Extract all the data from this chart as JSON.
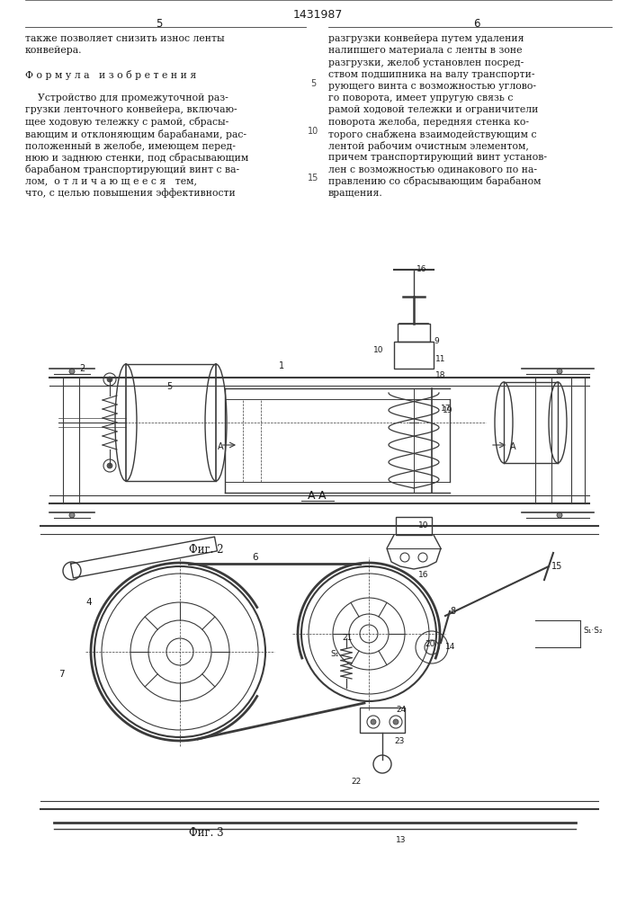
{
  "patent_number": "1431987",
  "page_left": "5",
  "page_right": "6",
  "bg_color": "#ffffff",
  "text_color": "#1a1a1a",
  "line_color": "#3a3a3a",
  "left_column_text": [
    "также позволяет снизить износ ленты",
    "конвейера.",
    "",
    "Ф о р м у л а   и з о б р е т е н и я",
    "",
    "    Устройство для промежуточной раз-",
    "грузки ленточного конвейера, включаю-",
    "щее ходовую тележку с рамой, сбрасы-",
    "вающим и отклоняющим барабанами, рас-",
    "положенный в желобе, имеющем перед-",
    "нюю и заднюю стенки, под сбрасывающим",
    "барабаном транспортирующий винт с ва-",
    "лом,  о т л и ч а ю щ е е с я   тем,",
    "что, с целью повышения эффективности"
  ],
  "right_column_text": [
    "разгрузки конвейера путем удаления",
    "налипшего материала с ленты в зоне",
    "разгрузки, желоб установлен посред-",
    "ством подшипника на валу транспорти-",
    "рующего винта с возможностью углово-",
    "го поворота, имеет упругую связь с",
    "рамой ходовой тележки и ограничители",
    "поворота желоба, передняя стенка ко-",
    "торого снабжена взаимодействующим с",
    "лентой рабочим очистным элементом,",
    "причем транспортирующий винт установ-",
    "лен с возможностью одинакового по на-",
    "правлению со сбрасывающим барабаном",
    "вращения."
  ],
  "fig2_label": "Фиг. 2",
  "fig3_label": "Фиг. 3",
  "section_label": "А-А"
}
